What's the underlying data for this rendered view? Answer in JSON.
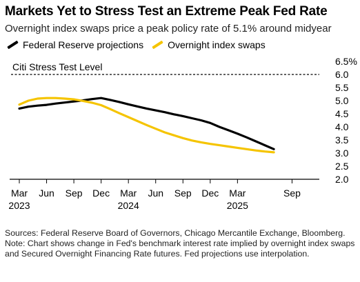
{
  "title": "Markets Yet to Stress Test an Extreme Peak Fed Rate",
  "subtitle": "Overnight index swaps price a peak policy rate of 5.1% around midyear",
  "colors": {
    "federal_reserve": "#000000",
    "ois": "#f5c400",
    "reference": "#000000",
    "axis": "#000000"
  },
  "chart_data": {
    "type": "line",
    "title": "Markets Yet to Stress Test an Extreme Peak Fed Rate",
    "subtitle": "Overnight index swaps price a peak policy rate of 5.1% around midyear",
    "x_tick_labels": [
      {
        "month": "Mar",
        "year": "2023",
        "date": "2023-03"
      },
      {
        "month": "Jun",
        "year": "",
        "date": "2023-06"
      },
      {
        "month": "Sep",
        "year": "",
        "date": "2023-09"
      },
      {
        "month": "Dec",
        "year": "",
        "date": "2023-12"
      },
      {
        "month": "Mar",
        "year": "2024",
        "date": "2024-03"
      },
      {
        "month": "Jun",
        "year": "",
        "date": "2024-06"
      },
      {
        "month": "Sep",
        "year": "",
        "date": "2024-09"
      },
      {
        "month": "Dec",
        "year": "",
        "date": "2024-12"
      },
      {
        "month": "Mar",
        "year": "2025",
        "date": "2025-03"
      },
      {
        "month": "Sep",
        "year": "",
        "date": "2025-09"
      }
    ],
    "y_ticks": [
      "6.5%",
      "6.0",
      "5.5",
      "5.0",
      "4.5",
      "4.0",
      "3.5",
      "3.0",
      "2.5",
      "2.0"
    ],
    "ylim": [
      2.0,
      6.5
    ],
    "xlim": [
      "2023-03",
      "2025-12"
    ],
    "grid": false,
    "legend_position": "top-left",
    "reference_line": {
      "label": "Citi Stress Test Level",
      "value": 6.0
    },
    "series": [
      {
        "name": "Federal Reserve projections",
        "color": "#000000",
        "points": [
          [
            "2023-03",
            4.7
          ],
          [
            "2023-04",
            4.77
          ],
          [
            "2023-05",
            4.81
          ],
          [
            "2023-06",
            4.84
          ],
          [
            "2023-07",
            4.89
          ],
          [
            "2023-08",
            4.93
          ],
          [
            "2023-09",
            4.97
          ],
          [
            "2023-10",
            5.01
          ],
          [
            "2023-11",
            5.06
          ],
          [
            "2023-12",
            5.1
          ],
          [
            "2024-01",
            5.03
          ],
          [
            "2024-02",
            4.95
          ],
          [
            "2024-03",
            4.86
          ],
          [
            "2024-04",
            4.78
          ],
          [
            "2024-05",
            4.7
          ],
          [
            "2024-06",
            4.63
          ],
          [
            "2024-07",
            4.56
          ],
          [
            "2024-08",
            4.48
          ],
          [
            "2024-09",
            4.41
          ],
          [
            "2024-10",
            4.33
          ],
          [
            "2024-11",
            4.25
          ],
          [
            "2024-12",
            4.15
          ],
          [
            "2025-01",
            4.0
          ],
          [
            "2025-02",
            3.87
          ],
          [
            "2025-03",
            3.74
          ],
          [
            "2025-04",
            3.6
          ],
          [
            "2025-05",
            3.45
          ],
          [
            "2025-06",
            3.3
          ],
          [
            "2025-07",
            3.15
          ]
        ]
      },
      {
        "name": "Overnight index swaps",
        "color": "#f5c400",
        "points": [
          [
            "2023-03",
            4.85
          ],
          [
            "2023-04",
            5.0
          ],
          [
            "2023-05",
            5.08
          ],
          [
            "2023-06",
            5.1
          ],
          [
            "2023-07",
            5.1
          ],
          [
            "2023-08",
            5.08
          ],
          [
            "2023-09",
            5.05
          ],
          [
            "2023-10",
            4.99
          ],
          [
            "2023-11",
            4.92
          ],
          [
            "2023-12",
            4.83
          ],
          [
            "2024-01",
            4.68
          ],
          [
            "2024-02",
            4.52
          ],
          [
            "2024-03",
            4.37
          ],
          [
            "2024-04",
            4.22
          ],
          [
            "2024-05",
            4.07
          ],
          [
            "2024-06",
            3.93
          ],
          [
            "2024-07",
            3.79
          ],
          [
            "2024-08",
            3.68
          ],
          [
            "2024-09",
            3.57
          ],
          [
            "2024-10",
            3.48
          ],
          [
            "2024-11",
            3.41
          ],
          [
            "2024-12",
            3.35
          ],
          [
            "2025-01",
            3.3
          ],
          [
            "2025-02",
            3.25
          ],
          [
            "2025-03",
            3.2
          ],
          [
            "2025-04",
            3.15
          ],
          [
            "2025-05",
            3.1
          ],
          [
            "2025-06",
            3.06
          ],
          [
            "2025-07",
            3.03
          ]
        ]
      }
    ]
  },
  "notes": {
    "sources": "Sources: Federal Reserve Board of Governors, Chicago Mercantile Exchange, Bloomberg.",
    "note": "Note: Chart shows change in Fed's benchmark interest rate implied by overnight index swaps and Secured Overnight Financing Rate futures. Fed projections use interpolation."
  }
}
